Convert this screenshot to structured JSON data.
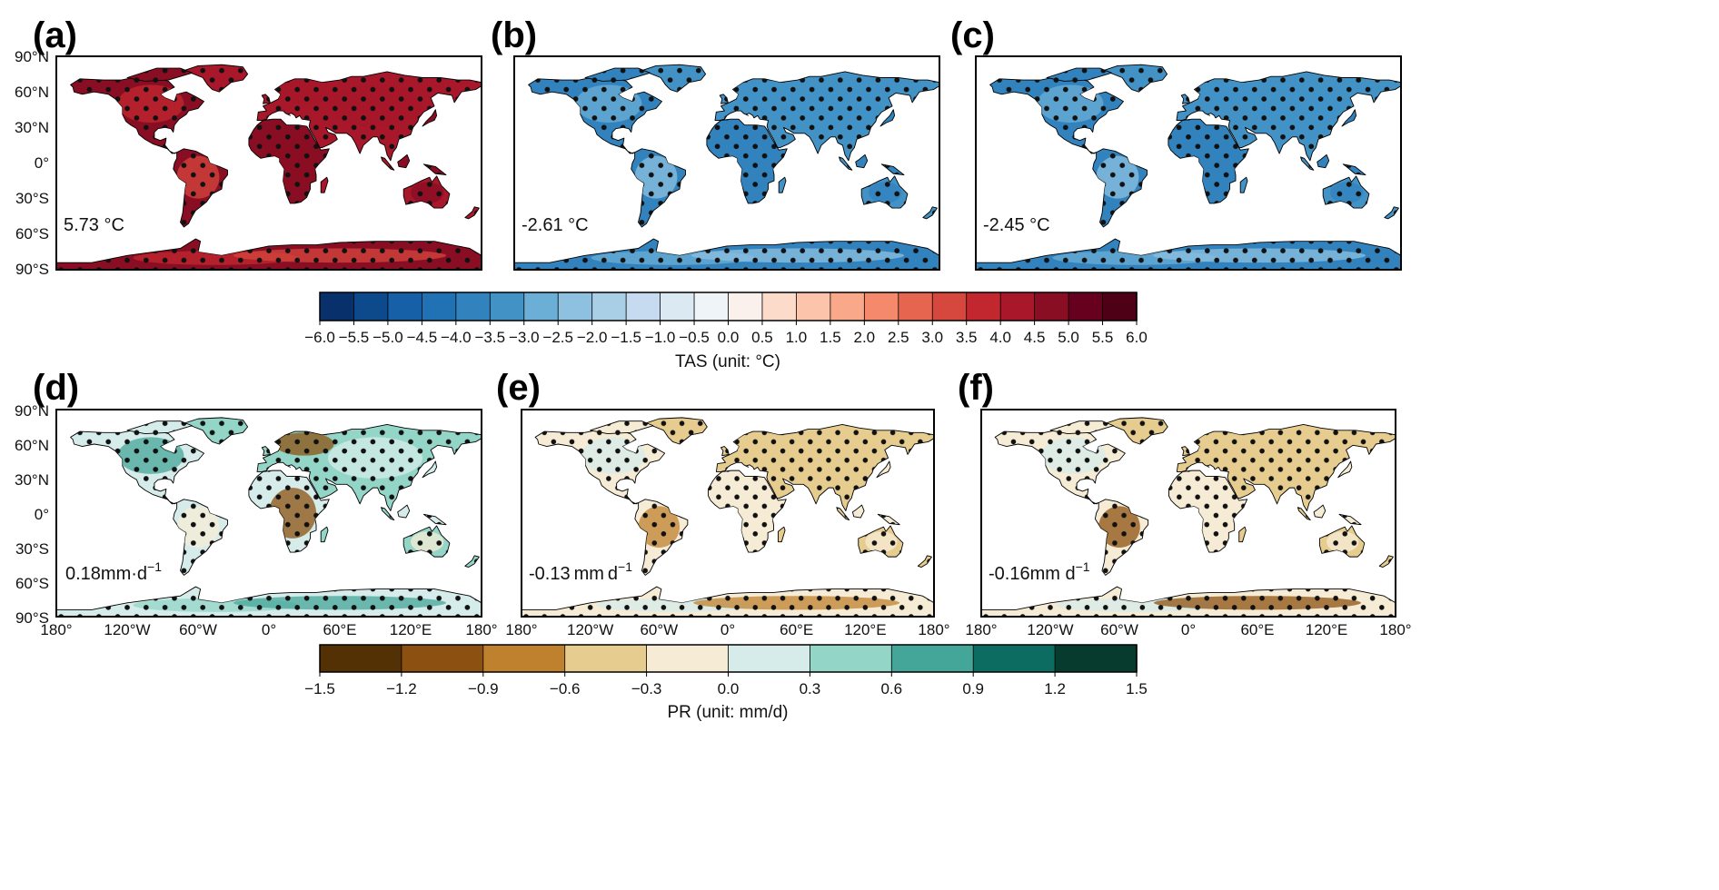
{
  "figure": {
    "panels": [
      {
        "label": "(a)",
        "value": "5.73 °C",
        "field": "tas",
        "mean": 5.73,
        "unit": "°C"
      },
      {
        "label": "(b)",
        "value": "-2.61 °C",
        "field": "tas",
        "mean": -2.61,
        "unit": "°C"
      },
      {
        "label": "(c)",
        "value": "-2.45 °C",
        "field": "tas",
        "mean": -2.45,
        "unit": "°C"
      },
      {
        "label": "(d)",
        "value_text": "0.18mm·d",
        "value_sup": "−1",
        "field": "pr",
        "mean": 0.18,
        "unit": "mm/d"
      },
      {
        "label": "(e)",
        "value_text": "-0.13 mm d",
        "value_sup": "−1",
        "field": "pr",
        "mean": -0.13,
        "unit": "mm/d"
      },
      {
        "label": "(f)",
        "value_text": "-0.16mm d",
        "value_sup": "−1",
        "field": "pr",
        "mean": -0.16,
        "unit": "mm/d"
      }
    ],
    "lat_labels": [
      "90°N",
      "60°N",
      "30°N",
      "0°",
      "30°S",
      "60°S",
      "90°S"
    ],
    "lon_labels": [
      "180°",
      "120°W",
      "60°W",
      "0°",
      "60°E",
      "120°E",
      "180°"
    ],
    "colorbars": {
      "tas": {
        "title": "TAS (unit: °C)",
        "ticks": [
          "−6.0",
          "−5.5",
          "−5.0",
          "−4.5",
          "−4.0",
          "−3.5",
          "−3.0",
          "−2.5",
          "−2.0",
          "−1.5",
          "−1.0",
          "−0.5",
          "0.0",
          "0.5",
          "1.0",
          "1.5",
          "2.0",
          "2.5",
          "3.0",
          "3.5",
          "4.0",
          "4.5",
          "5.0",
          "5.5",
          "6.0"
        ],
        "colors": [
          "#08306b",
          "#0d4a8c",
          "#1660a8",
          "#2171b5",
          "#3182bd",
          "#4292c6",
          "#6baed6",
          "#8ec0e0",
          "#a9cfe6",
          "#c6dbef",
          "#dbe9f3",
          "#eef4f8",
          "#fbf1ec",
          "#fddbcb",
          "#fcc5ab",
          "#f9a98a",
          "#f4896b",
          "#e6654e",
          "#d6473d",
          "#c2272f",
          "#a8172a",
          "#8a0e23",
          "#67001f",
          "#4d0016"
        ]
      },
      "pr": {
        "title": "PR (unit: mm/d)",
        "ticks": [
          "−1.5",
          "−1.2",
          "−0.9",
          "−0.6",
          "−0.3",
          "0.0",
          "0.3",
          "0.6",
          "0.9",
          "1.2",
          "1.5"
        ],
        "colors": [
          "#543005",
          "#8c5110",
          "#bf812d",
          "#e6cc8e",
          "#f6ecd5",
          "#d6ecea",
          "#93d5c7",
          "#44a698",
          "#0d6c62",
          "#063b2e"
        ]
      }
    },
    "map_colors": {
      "tas_a": [
        "#8a0e23",
        "#a8172a",
        "#c2272f",
        "#d6473d"
      ],
      "tas_b": [
        "#3182bd",
        "#4292c6",
        "#6baed6",
        "#8ec0e0"
      ],
      "tas_c": [
        "#3182bd",
        "#4292c6",
        "#6baed6",
        "#8ec0e0"
      ],
      "pr_d": [
        "#d6ecea",
        "#93d5c7",
        "#44a698",
        "#f6ecd5",
        "#8c5110"
      ],
      "pr_e": [
        "#f6ecd5",
        "#e6cc8e",
        "#d6ecea",
        "#bf812d"
      ],
      "pr_f": [
        "#f6ecd5",
        "#e6cc8e",
        "#d6ecea",
        "#8c5110"
      ]
    }
  }
}
